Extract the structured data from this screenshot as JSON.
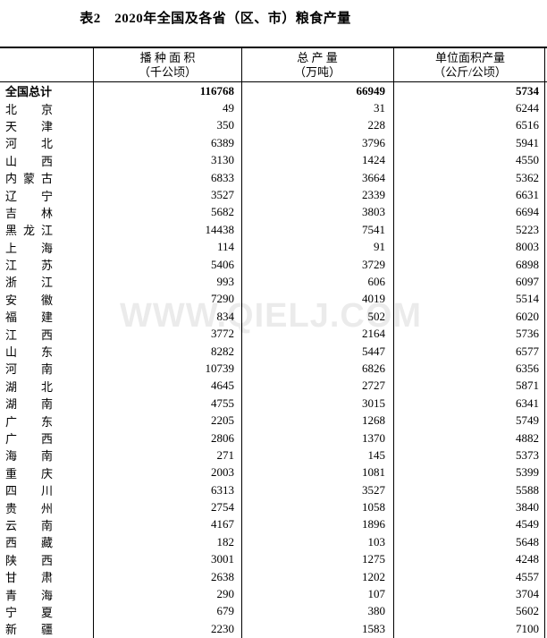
{
  "page": {
    "title": "表2　2020年全国及各省（区、市）粮食产量",
    "watermark": "WWW.QIELJ.COM"
  },
  "colors": {
    "border": "#000000",
    "text": "#000000",
    "watermark_gray": "#eaeaea",
    "background": "#ffffff"
  },
  "table": {
    "columns": [
      {
        "line1": "播 种 面 积",
        "line2": "（千公顷）"
      },
      {
        "line1": "总  产  量",
        "line2": "（万吨）"
      },
      {
        "line1": "单位面积产量",
        "line2": "（公斤/公顷）"
      }
    ],
    "rows": [
      {
        "name": "全国总计",
        "sown_area": "116768",
        "output": "66949",
        "yield": "5734",
        "bold": true
      },
      {
        "name": "北京",
        "sown_area": "49",
        "output": "31",
        "yield": "6244",
        "bold": false
      },
      {
        "name": "天津",
        "sown_area": "350",
        "output": "228",
        "yield": "6516",
        "bold": false
      },
      {
        "name": "河北",
        "sown_area": "6389",
        "output": "3796",
        "yield": "5941",
        "bold": false
      },
      {
        "name": "山西",
        "sown_area": "3130",
        "output": "1424",
        "yield": "4550",
        "bold": false
      },
      {
        "name": "内蒙古",
        "sown_area": "6833",
        "output": "3664",
        "yield": "5362",
        "bold": false
      },
      {
        "name": "辽宁",
        "sown_area": "3527",
        "output": "2339",
        "yield": "6631",
        "bold": false
      },
      {
        "name": "吉林",
        "sown_area": "5682",
        "output": "3803",
        "yield": "6694",
        "bold": false
      },
      {
        "name": "黑龙江",
        "sown_area": "14438",
        "output": "7541",
        "yield": "5223",
        "bold": false
      },
      {
        "name": "上海",
        "sown_area": "114",
        "output": "91",
        "yield": "8003",
        "bold": false
      },
      {
        "name": "江苏",
        "sown_area": "5406",
        "output": "3729",
        "yield": "6898",
        "bold": false
      },
      {
        "name": "浙江",
        "sown_area": "993",
        "output": "606",
        "yield": "6097",
        "bold": false
      },
      {
        "name": "安徽",
        "sown_area": "7290",
        "output": "4019",
        "yield": "5514",
        "bold": false
      },
      {
        "name": "福建",
        "sown_area": "834",
        "output": "502",
        "yield": "6020",
        "bold": false
      },
      {
        "name": "江西",
        "sown_area": "3772",
        "output": "2164",
        "yield": "5736",
        "bold": false
      },
      {
        "name": "山东",
        "sown_area": "8282",
        "output": "5447",
        "yield": "6577",
        "bold": false
      },
      {
        "name": "河南",
        "sown_area": "10739",
        "output": "6826",
        "yield": "6356",
        "bold": false
      },
      {
        "name": "湖北",
        "sown_area": "4645",
        "output": "2727",
        "yield": "5871",
        "bold": false
      },
      {
        "name": "湖南",
        "sown_area": "4755",
        "output": "3015",
        "yield": "6341",
        "bold": false
      },
      {
        "name": "广东",
        "sown_area": "2205",
        "output": "1268",
        "yield": "5749",
        "bold": false
      },
      {
        "name": "广西",
        "sown_area": "2806",
        "output": "1370",
        "yield": "4882",
        "bold": false
      },
      {
        "name": "海南",
        "sown_area": "271",
        "output": "145",
        "yield": "5373",
        "bold": false
      },
      {
        "name": "重庆",
        "sown_area": "2003",
        "output": "1081",
        "yield": "5399",
        "bold": false
      },
      {
        "name": "四川",
        "sown_area": "6313",
        "output": "3527",
        "yield": "5588",
        "bold": false
      },
      {
        "name": "贵州",
        "sown_area": "2754",
        "output": "1058",
        "yield": "3840",
        "bold": false
      },
      {
        "name": "云南",
        "sown_area": "4167",
        "output": "1896",
        "yield": "4549",
        "bold": false
      },
      {
        "name": "西藏",
        "sown_area": "182",
        "output": "103",
        "yield": "5648",
        "bold": false
      },
      {
        "name": "陕西",
        "sown_area": "3001",
        "output": "1275",
        "yield": "4248",
        "bold": false
      },
      {
        "name": "甘肃",
        "sown_area": "2638",
        "output": "1202",
        "yield": "4557",
        "bold": false
      },
      {
        "name": "青海",
        "sown_area": "290",
        "output": "107",
        "yield": "3704",
        "bold": false
      },
      {
        "name": "宁夏",
        "sown_area": "679",
        "output": "380",
        "yield": "5602",
        "bold": false
      },
      {
        "name": "新疆",
        "sown_area": "2230",
        "output": "1583",
        "yield": "7100",
        "bold": false
      }
    ]
  }
}
